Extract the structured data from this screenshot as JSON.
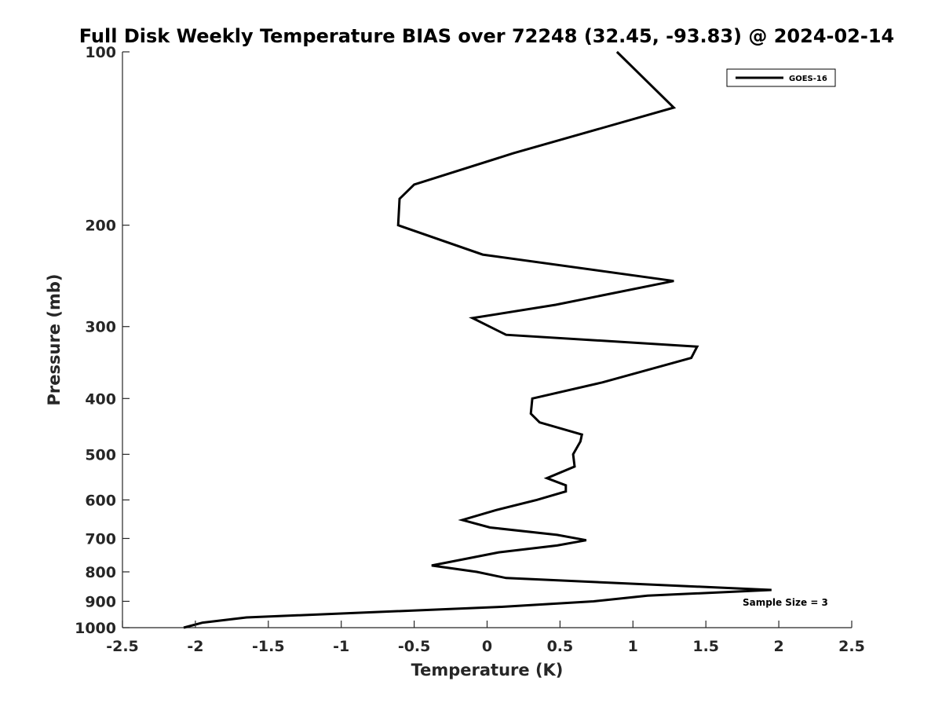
{
  "chart_data": {
    "type": "line",
    "title": "Full Disk Weekly Temperature BIAS over 72248 (32.45, -93.83) @ 2024-02-14",
    "xlabel": "Temperature (K)",
    "ylabel": "Pressure (mb)",
    "xlim": [
      -2.5,
      2.5
    ],
    "ylim": [
      100,
      1000
    ],
    "y_scale": "log",
    "y_reversed": true,
    "x_ticks": [
      -2.5,
      -2,
      -1.5,
      -1,
      -0.5,
      0,
      0.5,
      1,
      1.5,
      2,
      2.5
    ],
    "x_tick_labels": [
      "-2.5",
      "-2",
      "-1.5",
      "-1",
      "-0.5",
      "0",
      "0.5",
      "1",
      "1.5",
      "2",
      "2.5"
    ],
    "y_ticks": [
      100,
      200,
      300,
      400,
      500,
      600,
      700,
      800,
      900,
      1000
    ],
    "y_tick_labels": [
      "100",
      "200",
      "300",
      "400",
      "500",
      "600",
      "700",
      "800",
      "900",
      "1000"
    ],
    "grid": false,
    "legend_position": "top-right",
    "annotation": "Sample Size = 3",
    "series": [
      {
        "name": "GOES-16",
        "color": "#000000",
        "points": [
          {
            "x": 0.89,
            "p": 100
          },
          {
            "x": 1.28,
            "p": 125
          },
          {
            "x": 0.18,
            "p": 150
          },
          {
            "x": -0.5,
            "p": 170
          },
          {
            "x": -0.6,
            "p": 180
          },
          {
            "x": -0.61,
            "p": 200
          },
          {
            "x": -0.03,
            "p": 225
          },
          {
            "x": 1.28,
            "p": 250
          },
          {
            "x": 0.47,
            "p": 275
          },
          {
            "x": -0.1,
            "p": 290
          },
          {
            "x": 0.13,
            "p": 310
          },
          {
            "x": 1.44,
            "p": 325
          },
          {
            "x": 1.4,
            "p": 340
          },
          {
            "x": 1.22,
            "p": 350
          },
          {
            "x": 0.79,
            "p": 375
          },
          {
            "x": 0.31,
            "p": 400
          },
          {
            "x": 0.3,
            "p": 425
          },
          {
            "x": 0.36,
            "p": 440
          },
          {
            "x": 0.65,
            "p": 462
          },
          {
            "x": 0.64,
            "p": 475
          },
          {
            "x": 0.59,
            "p": 500
          },
          {
            "x": 0.6,
            "p": 525
          },
          {
            "x": 0.41,
            "p": 550
          },
          {
            "x": 0.54,
            "p": 566
          },
          {
            "x": 0.54,
            "p": 580
          },
          {
            "x": 0.34,
            "p": 600
          },
          {
            "x": 0.06,
            "p": 625
          },
          {
            "x": -0.17,
            "p": 650
          },
          {
            "x": 0.02,
            "p": 670
          },
          {
            "x": 0.48,
            "p": 690
          },
          {
            "x": 0.68,
            "p": 705
          },
          {
            "x": 0.48,
            "p": 720
          },
          {
            "x": 0.08,
            "p": 740
          },
          {
            "x": -0.38,
            "p": 780
          },
          {
            "x": -0.07,
            "p": 800
          },
          {
            "x": 0.13,
            "p": 820
          },
          {
            "x": 1.95,
            "p": 860
          },
          {
            "x": 1.1,
            "p": 880
          },
          {
            "x": 0.73,
            "p": 900
          },
          {
            "x": 0.1,
            "p": 920
          },
          {
            "x": -1.65,
            "p": 960
          },
          {
            "x": -1.95,
            "p": 980
          },
          {
            "x": -2.08,
            "p": 1000
          }
        ]
      }
    ]
  }
}
